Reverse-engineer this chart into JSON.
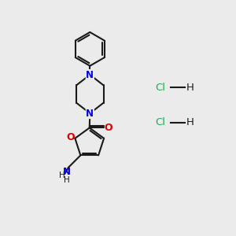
{
  "background_color": "#ebebeb",
  "bond_color": "#1a1a1a",
  "n_color": "#0000ee",
  "o_color": "#dd0000",
  "cl_color": "#22aa55",
  "h_color": "#1a1a1a",
  "figsize": [
    3.0,
    3.0
  ],
  "dpi": 100,
  "xlim": [
    0,
    10
  ],
  "ylim": [
    0,
    10
  ]
}
